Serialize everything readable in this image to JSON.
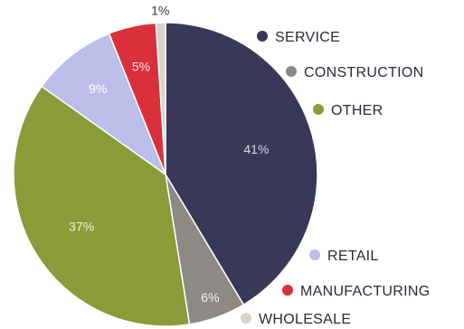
{
  "chart_data": {
    "type": "pie",
    "slices": [
      {
        "name": "SERVICE",
        "value": 41,
        "label": "41%",
        "color": "#3a3858",
        "label_color": "#d8d8ec"
      },
      {
        "name": "CONSTRUCTION",
        "value": 6,
        "label": "6%",
        "color": "#8d8a86",
        "label_color": "#f4f4f4"
      },
      {
        "name": "OTHER",
        "value": 37,
        "label": "37%",
        "color": "#8a9b39",
        "label_color": "#eef2d6"
      },
      {
        "name": "RETAIL",
        "value": 9,
        "label": "9%",
        "color": "#bcbde8",
        "label_color": "#ffffff"
      },
      {
        "name": "MANUFACTURING",
        "value": 5,
        "label": "5%",
        "color": "#d9303c",
        "label_color": "#ffe9ea"
      },
      {
        "name": "WHOLESALE",
        "value": 1,
        "label": "1%",
        "color": "#d8d4cc",
        "label_color": "#333333"
      }
    ],
    "legend": [
      {
        "name": "SERVICE",
        "color": "#3a3858"
      },
      {
        "name": "CONSTRUCTION",
        "color": "#8d8a86"
      },
      {
        "name": "OTHER",
        "color": "#8a9b39"
      },
      {
        "name": "RETAIL",
        "color": "#bcbde8"
      },
      {
        "name": "MANUFACTURING",
        "color": "#d9303c"
      },
      {
        "name": "WHOLESALE",
        "color": "#d8d4cc"
      }
    ]
  }
}
